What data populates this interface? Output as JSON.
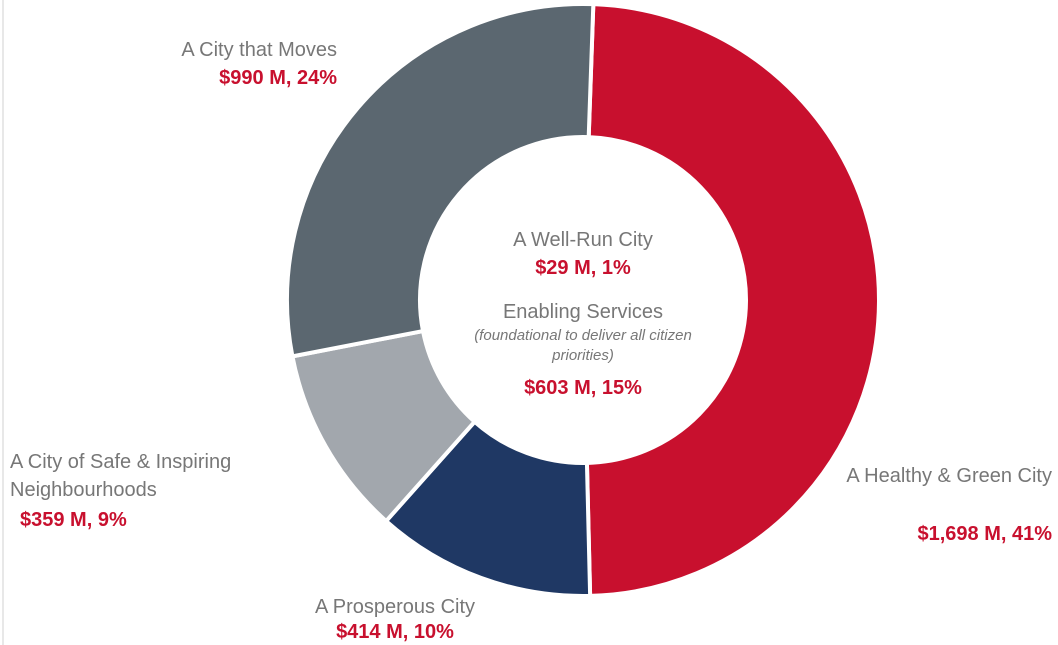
{
  "chart_data": {
    "type": "donut",
    "categories": [
      "A Healthy & Green City",
      "A Prosperous City",
      "A City of Safe & Inspiring Neighbourhoods",
      "A City that Moves"
    ],
    "values": [
      1698,
      414,
      359,
      990
    ],
    "value_labels": [
      "$1,698 M, 41%",
      "$414 M, 10%",
      "$359 M, 9%",
      "$990 M, 24%"
    ],
    "colors": [
      "#c8102e",
      "#1f3864",
      "#a2a7ad",
      "#5b6770"
    ],
    "label_color": "#c8102e",
    "center": [
      {
        "name": "A Well-Run City",
        "value": 29,
        "value_label": "$29 M, 1%"
      },
      {
        "name": "Enabling Services",
        "note": "(foundational to deliver all citizen priorities)",
        "value": 603,
        "value_label": "$603 M, 15%"
      }
    ]
  }
}
